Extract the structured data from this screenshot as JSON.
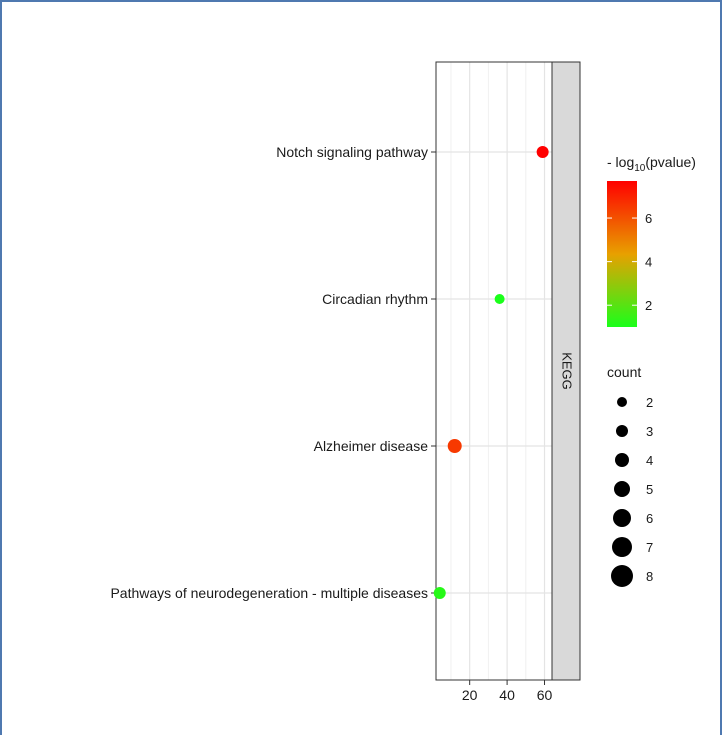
{
  "chart_data": {
    "type": "scatter",
    "facet_label": "KEGG",
    "categories": [
      "Notch signaling pathway",
      "Circadian rhythm",
      "Alzheimer disease",
      "Pathways of neurodegeneration -  multiple diseases"
    ],
    "points": [
      {
        "term": "Notch signaling pathway",
        "x": 59,
        "neg_log10_pvalue": 7.7,
        "count": 3
      },
      {
        "term": "Circadian rhythm",
        "x": 36,
        "neg_log10_pvalue": 1.0,
        "count": 2
      },
      {
        "term": "Alzheimer disease",
        "x": 12,
        "neg_log10_pvalue": 6.5,
        "count": 4
      },
      {
        "term": "Pathways of neurodegeneration -  multiple diseases",
        "x": 4,
        "neg_log10_pvalue": 1.2,
        "count": 3
      }
    ],
    "xlim": [
      2,
      64
    ],
    "x_ticks": [
      20,
      40,
      60
    ],
    "color_legend": {
      "title_prefix": "- log",
      "title_sub": "10",
      "title_suffix": "(pvalue)",
      "range": [
        1,
        7.7
      ],
      "ticks": [
        2,
        4,
        6
      ],
      "low_color": "#1aff1a",
      "mid_color": "#e8a000",
      "high_color": "#ff0000"
    },
    "size_legend": {
      "title": "count",
      "values": [
        2,
        3,
        4,
        5,
        6,
        7,
        8
      ]
    },
    "grid": true,
    "legend_position": "right"
  }
}
